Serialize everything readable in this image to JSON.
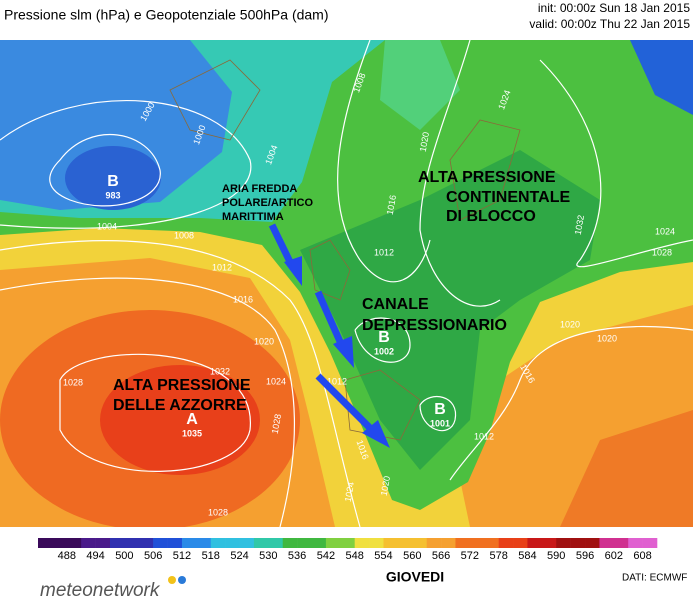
{
  "header": {
    "title": "Pressione slm (hPa) e Geopotenziale 500hPa (dam)",
    "init": "init: 00:00z Sun 18 Jan 2015",
    "valid": "valid: 00:00z Thu 22 Jan 2015"
  },
  "map": {
    "annotations": {
      "cold_air": [
        "ARIA FREDDA",
        "POLARE/ARTICO",
        "MARITTIMA"
      ],
      "continental_high": [
        "ALTA PRESSIONE",
        "CONTINENTALE",
        "DI BLOCCO"
      ],
      "trough": [
        "CANALE",
        "DEPRESSIONARIO"
      ],
      "azores_high": [
        "ALTA PRESSIONE",
        "DELLE AZZORRE"
      ]
    },
    "centers": [
      {
        "letter": "B",
        "value": 983
      },
      {
        "letter": "A",
        "value": 1035
      },
      {
        "letter": "B",
        "value": 1002
      },
      {
        "letter": "B",
        "value": 1001
      }
    ],
    "isobar_labels": [
      1000,
      1000,
      1004,
      1004,
      1008,
      1008,
      1012,
      1016,
      1020,
      1024,
      1028,
      1032,
      1028,
      1028,
      1024,
      1020,
      1016,
      1012,
      1024,
      1028,
      1032,
      1020,
      1020,
      1016,
      1012,
      1016,
      1020,
      1024,
      1012
    ]
  },
  "colorbar": {
    "ticks": [
      488,
      494,
      500,
      506,
      512,
      518,
      524,
      530,
      536,
      542,
      548,
      554,
      560,
      566,
      572,
      578,
      584,
      590,
      596,
      602,
      608
    ]
  },
  "footer": {
    "logo": "meteonetwork",
    "day": "GIOVEDI",
    "source": "DATI: ECMWF"
  }
}
